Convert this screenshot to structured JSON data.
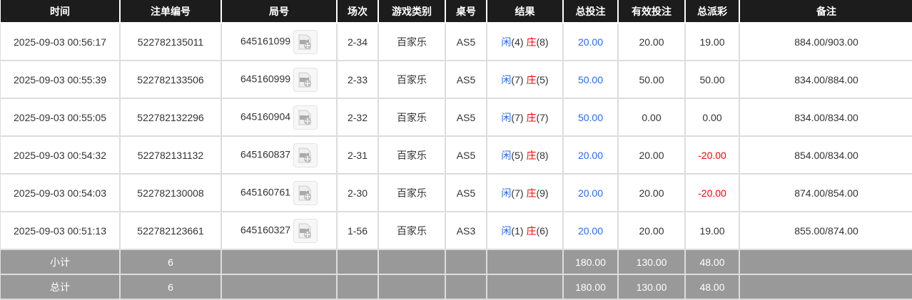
{
  "headers": [
    "时间",
    "注单编号",
    "局号",
    "场次",
    "游戏类别",
    "桌号",
    "结果",
    "总投注",
    "有效投注",
    "总派彩",
    "备注"
  ],
  "rows": [
    {
      "time": "2025-09-03 00:56:17",
      "bet_id": "522782135011",
      "round": "645161099",
      "session": "2-34",
      "game": "百家乐",
      "table": "AS5",
      "player": "闲",
      "player_pts": "(4)",
      "banker": "庄",
      "banker_pts": "(8)",
      "total": "20.00",
      "valid": "20.00",
      "payout": "19.00",
      "payout_neg": false,
      "note": "884.00/903.00"
    },
    {
      "time": "2025-09-03 00:55:39",
      "bet_id": "522782133506",
      "round": "645160999",
      "session": "2-33",
      "game": "百家乐",
      "table": "AS5",
      "player": "闲",
      "player_pts": "(7)",
      "banker": "庄",
      "banker_pts": "(5)",
      "total": "50.00",
      "valid": "50.00",
      "payout": "50.00",
      "payout_neg": false,
      "note": "834.00/884.00"
    },
    {
      "time": "2025-09-03 00:55:05",
      "bet_id": "522782132296",
      "round": "645160904",
      "session": "2-32",
      "game": "百家乐",
      "table": "AS5",
      "player": "闲",
      "player_pts": "(7)",
      "banker": "庄",
      "banker_pts": "(7)",
      "total": "50.00",
      "valid": "0.00",
      "payout": "0.00",
      "payout_neg": false,
      "note": "834.00/834.00"
    },
    {
      "time": "2025-09-03 00:54:32",
      "bet_id": "522782131132",
      "round": "645160837",
      "session": "2-31",
      "game": "百家乐",
      "table": "AS5",
      "player": "闲",
      "player_pts": "(5)",
      "banker": "庄",
      "banker_pts": "(8)",
      "total": "20.00",
      "valid": "20.00",
      "payout": "-20.00",
      "payout_neg": true,
      "note": "854.00/834.00"
    },
    {
      "time": "2025-09-03 00:54:03",
      "bet_id": "522782130008",
      "round": "645160761",
      "session": "2-30",
      "game": "百家乐",
      "table": "AS5",
      "player": "闲",
      "player_pts": "(7)",
      "banker": "庄",
      "banker_pts": "(9)",
      "total": "20.00",
      "valid": "20.00",
      "payout": "-20.00",
      "payout_neg": true,
      "note": "874.00/854.00"
    },
    {
      "time": "2025-09-03 00:51:13",
      "bet_id": "522782123661",
      "round": "645160327",
      "session": "1-56",
      "game": "百家乐",
      "table": "AS3",
      "player": "闲",
      "player_pts": "(1)",
      "banker": "庄",
      "banker_pts": "(6)",
      "total": "20.00",
      "valid": "20.00",
      "payout": "19.00",
      "payout_neg": false,
      "note": "855.00/874.00"
    }
  ],
  "subtotal": {
    "label": "小计",
    "count": "6",
    "total": "180.00",
    "valid": "130.00",
    "payout": "48.00"
  },
  "grandtotal": {
    "label": "总计",
    "count": "6",
    "total": "180.00",
    "valid": "130.00",
    "payout": "48.00"
  },
  "colors": {
    "header_bg": "#1c1c1c",
    "summary_bg": "#999999",
    "blue": "#2a6ae9",
    "red": "#ff0000"
  },
  "icons": {
    "replay": "video-replay-icon"
  }
}
